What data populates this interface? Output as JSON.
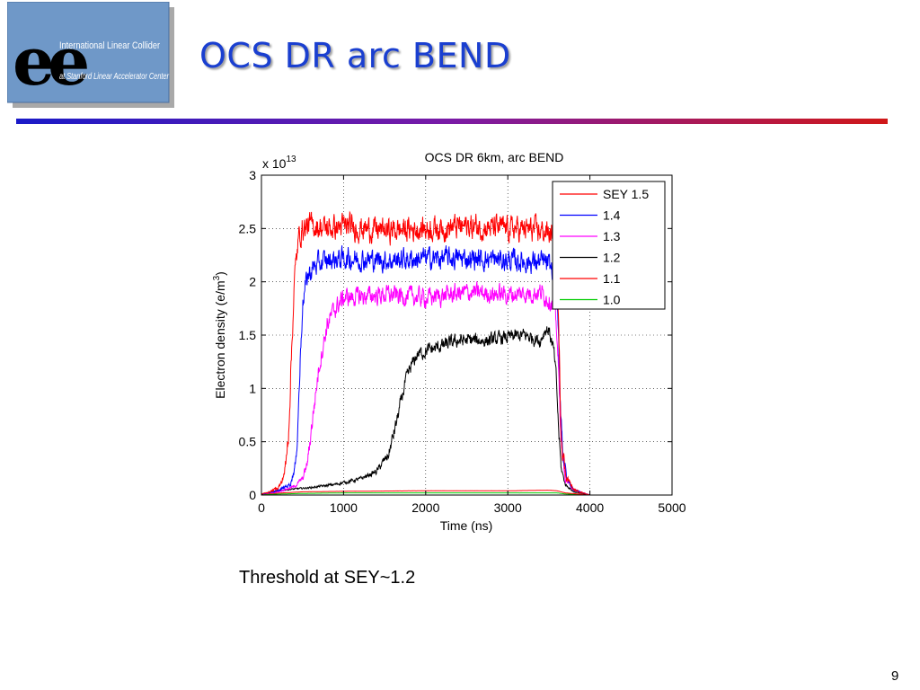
{
  "logo": {
    "line1": "International Linear Collider",
    "line2": "at Stanford Linear Accelerator Center",
    "mark": "ee",
    "colors": {
      "panel": "#6f98c8",
      "text": "#ffffff",
      "mark": "#000000"
    }
  },
  "slide": {
    "title": "OCS DR arc BEND",
    "caption": "Threshold at SEY~1.2",
    "page_number": "9",
    "colors": {
      "title": "#1a3fd0",
      "rule_left": "#1a1ac8",
      "rule_right": "#d01818"
    }
  },
  "chart_data": {
    "type": "line",
    "title": "OCS DR 6km, arc BEND",
    "xlabel": "Time (ns)",
    "ylabel_main": "Electron density (e/m",
    "ylabel_sup": "3",
    "ylabel_end": ")",
    "y_multiplier": "x 10",
    "y_multiplier_exp": "13",
    "xlim": [
      0,
      5000
    ],
    "ylim": [
      0,
      3
    ],
    "x_ticks": [
      0,
      1000,
      2000,
      3000,
      4000,
      5000
    ],
    "y_ticks": [
      0,
      0.5,
      1,
      1.5,
      2,
      2.5,
      3
    ],
    "x_tick_labels": [
      "0",
      "1000",
      "2000",
      "3000",
      "4000",
      "5000"
    ],
    "y_tick_labels": [
      "0",
      "0.5",
      "1",
      "1.5",
      "2",
      "2.5",
      "3"
    ],
    "grid": true,
    "legend_position": "top-right",
    "series": [
      {
        "name": "SEY 1.5",
        "color": "#ff0000",
        "x": [
          0,
          100,
          200,
          250,
          300,
          330,
          360,
          400,
          450,
          500,
          600,
          800,
          1000,
          1500,
          2000,
          2500,
          3000,
          3400,
          3550,
          3600,
          3620,
          3650,
          3700,
          3800,
          4000
        ],
        "y": [
          0.01,
          0.03,
          0.07,
          0.12,
          0.3,
          0.6,
          1.2,
          2.0,
          2.4,
          2.5,
          2.53,
          2.5,
          2.52,
          2.48,
          2.5,
          2.52,
          2.5,
          2.48,
          2.45,
          2.3,
          1.5,
          0.6,
          0.2,
          0.05,
          0.0
        ],
        "noise": 0.09
      },
      {
        "name": "1.4",
        "color": "#0000ff",
        "x": [
          0,
          200,
          350,
          420,
          460,
          500,
          560,
          650,
          800,
          1000,
          1500,
          2000,
          2500,
          3000,
          3450,
          3560,
          3610,
          3640,
          3670,
          3720,
          3800,
          4000
        ],
        "y": [
          0.01,
          0.04,
          0.1,
          0.3,
          1.0,
          1.8,
          2.05,
          2.15,
          2.2,
          2.22,
          2.2,
          2.22,
          2.22,
          2.2,
          2.18,
          2.1,
          1.6,
          0.9,
          0.4,
          0.15,
          0.05,
          0.0
        ],
        "noise": 0.08
      },
      {
        "name": "1.3",
        "color": "#ff00ff",
        "x": [
          0,
          200,
          400,
          500,
          560,
          620,
          700,
          800,
          900,
          1000,
          1500,
          2000,
          2500,
          3000,
          3400,
          3560,
          3600,
          3630,
          3660,
          3700,
          3800,
          4000
        ],
        "y": [
          0.01,
          0.03,
          0.08,
          0.15,
          0.3,
          0.7,
          1.2,
          1.6,
          1.75,
          1.85,
          1.88,
          1.85,
          1.9,
          1.88,
          1.9,
          1.8,
          1.5,
          0.9,
          0.4,
          0.15,
          0.05,
          0.0
        ],
        "noise": 0.07
      },
      {
        "name": "1.2",
        "color": "#000000",
        "x": [
          0,
          300,
          600,
          900,
          1200,
          1400,
          1550,
          1650,
          1750,
          1820,
          1900,
          2000,
          2200,
          2400,
          2600,
          2800,
          3000,
          3200,
          3400,
          3450,
          3500,
          3560,
          3590,
          3620,
          3650,
          3700,
          3800,
          4000
        ],
        "y": [
          0.01,
          0.05,
          0.07,
          0.1,
          0.15,
          0.22,
          0.38,
          0.7,
          1.05,
          1.2,
          1.32,
          1.35,
          1.4,
          1.45,
          1.45,
          1.45,
          1.48,
          1.5,
          1.45,
          1.55,
          1.55,
          1.35,
          1.1,
          0.6,
          0.25,
          0.1,
          0.03,
          0.0
        ],
        "noise": 0.05
      },
      {
        "name": "1.1",
        "color": "#ff0000",
        "x": [
          0,
          500,
          1000,
          2000,
          3000,
          3500,
          3600,
          3700,
          4000
        ],
        "y": [
          0.01,
          0.03,
          0.035,
          0.04,
          0.04,
          0.045,
          0.04,
          0.02,
          0.0
        ],
        "noise": 0.004
      },
      {
        "name": "1.0",
        "color": "#00cc00",
        "x": [
          0,
          500,
          1000,
          2000,
          3000,
          3500,
          3600,
          3700,
          4000
        ],
        "y": [
          0.005,
          0.015,
          0.02,
          0.02,
          0.02,
          0.02,
          0.02,
          0.01,
          0.0
        ],
        "noise": 0.003
      }
    ]
  }
}
